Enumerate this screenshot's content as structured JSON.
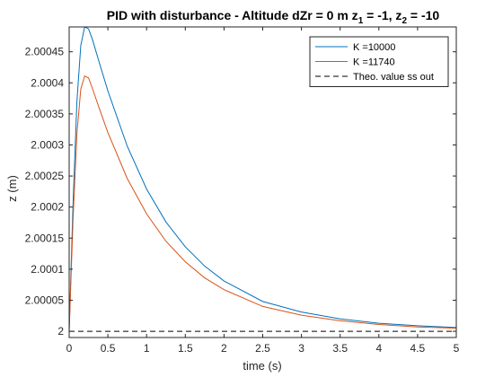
{
  "chart_data": {
    "type": "line",
    "title": {
      "prefix": "PID with disturbance - Altitude dZr = 0 m  z",
      "sub1": "1",
      "mid": " = -1, z",
      "sub2": "2",
      "suffix": " = -10"
    },
    "xlabel": "time (s)",
    "ylabel": "z (m)",
    "xlim": [
      0,
      5
    ],
    "ylim": [
      1.99999,
      2.00049
    ],
    "x_ticks": [
      0,
      0.5,
      1,
      1.5,
      2,
      2.5,
      3,
      3.5,
      4,
      4.5,
      5
    ],
    "x_tick_labels": [
      "0",
      "0.5",
      "1",
      "1.5",
      "2",
      "2.5",
      "3",
      "3.5",
      "4",
      "4.5",
      "5"
    ],
    "y_ticks": [
      2.0,
      2.00005,
      2.0001,
      2.00015,
      2.0002,
      2.00025,
      2.0003,
      2.00035,
      2.0004,
      2.00045
    ],
    "y_tick_labels": [
      "2",
      "2.00005",
      "2.0001",
      "2.00015",
      "2.0002",
      "2.00025",
      "2.0003",
      "2.00035",
      "2.0004",
      "2.00045"
    ],
    "grid": false,
    "legend_position": "top-right",
    "series": [
      {
        "name": "K =10000",
        "color": "#0072BD",
        "dash": "solid",
        "x": [
          0,
          0.05,
          0.1,
          0.15,
          0.2,
          0.25,
          0.3,
          0.4,
          0.5,
          0.75,
          1.0,
          1.25,
          1.5,
          1.75,
          2.0,
          2.5,
          3.0,
          3.5,
          4.0,
          4.5,
          5.0
        ],
        "y": [
          2.0,
          2.000205,
          2.00037,
          2.00046,
          2.00049,
          2.000487,
          2.00047,
          2.000428,
          2.000387,
          2.000298,
          2.000229,
          2.000176,
          2.000136,
          2.000105,
          2.000081,
          2.000048,
          2.000031,
          2.00002,
          2.000013,
          2.000009,
          2.000006
        ]
      },
      {
        "name": "K =11740",
        "color": "#D95319",
        "dash": "solid",
        "x": [
          0,
          0.05,
          0.1,
          0.15,
          0.2,
          0.25,
          0.3,
          0.4,
          0.5,
          0.75,
          1.0,
          1.25,
          1.5,
          1.75,
          2.0,
          2.5,
          3.0,
          3.5,
          4.0,
          4.5,
          5.0
        ],
        "y": [
          2.0,
          2.00018,
          2.000318,
          2.00039,
          2.000411,
          2.000408,
          2.000391,
          2.000355,
          2.00032,
          2.000246,
          2.000189,
          2.000145,
          2.000112,
          2.000086,
          2.000067,
          2.00004,
          2.000026,
          2.000017,
          2.000011,
          2.000007,
          2.000005
        ]
      },
      {
        "name": "Theo. value ss out",
        "color": "#000000",
        "dash": "dashed",
        "x": [
          0,
          5
        ],
        "y": [
          2.0,
          2.0
        ]
      }
    ]
  }
}
